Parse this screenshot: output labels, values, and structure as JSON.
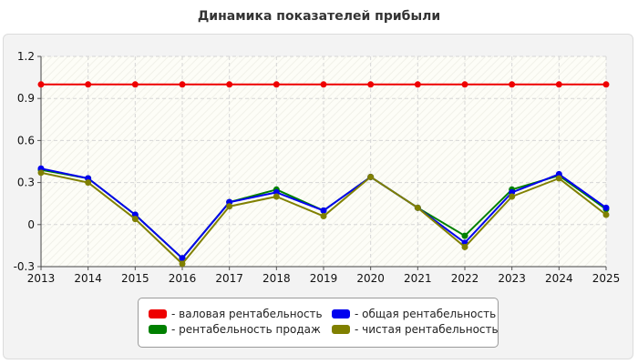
{
  "title": "Динамика показателей прибыли",
  "chart_data": {
    "type": "line",
    "title": "Динамика показателей прибыли",
    "xlabel": "",
    "ylabel": "",
    "categories": [
      "2013",
      "2014",
      "2015",
      "2016",
      "2017",
      "2018",
      "2019",
      "2020",
      "2021",
      "2022",
      "2023",
      "2024",
      "2025"
    ],
    "ylim": [
      -0.3,
      1.2
    ],
    "yticks": [
      -0.3,
      0,
      0.3,
      0.6,
      0.9,
      1.2
    ],
    "ytick_labels": [
      "-0.3",
      "0",
      "0.3",
      "0.6",
      "0.9",
      "1.2"
    ],
    "grid": true,
    "legend_position": "bottom",
    "series": [
      {
        "name": "- валовая рентабельность",
        "color": "#ee0000",
        "values": [
          1,
          1,
          1,
          1,
          1,
          1,
          1,
          1,
          1,
          1,
          1,
          1,
          1
        ]
      },
      {
        "name": "- рентабельность продаж",
        "color": "#008000",
        "values": [
          0.39,
          0.33,
          0.07,
          -0.24,
          0.16,
          0.25,
          0.1,
          0.34,
          0.12,
          -0.08,
          0.25,
          0.35,
          0.11
        ]
      },
      {
        "name": "- общая рентабельность",
        "color": "#0000ee",
        "values": [
          0.4,
          0.33,
          0.07,
          -0.24,
          0.16,
          0.23,
          0.1,
          0.34,
          0.12,
          -0.13,
          0.23,
          0.36,
          0.12
        ]
      },
      {
        "name": "- чистая рентабельность",
        "color": "#808000",
        "values": [
          0.37,
          0.3,
          0.04,
          -0.28,
          0.13,
          0.2,
          0.06,
          0.34,
          0.12,
          -0.16,
          0.2,
          0.33,
          0.07
        ]
      }
    ]
  }
}
